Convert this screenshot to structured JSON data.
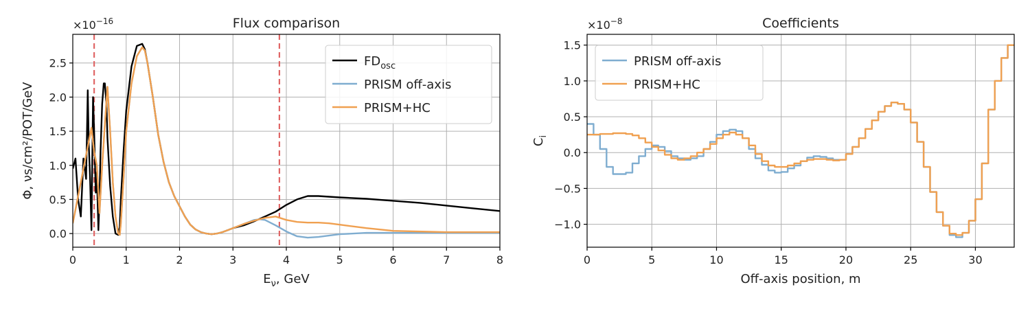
{
  "chart_data": [
    {
      "type": "line",
      "title": "Flux comparison",
      "xlabel": "E",
      "xlabel_sub": "ν",
      "xlabel_suffix": ", GeV",
      "ylabel": "Φ, νs/cm²/POT/GeV",
      "multiplier": "×10",
      "multiplier_exp": "−16",
      "xlim": [
        0,
        8
      ],
      "ylim": [
        -0.2,
        2.92
      ],
      "xticks": [
        "0",
        "1",
        "2",
        "3",
        "4",
        "5",
        "6",
        "7",
        "8"
      ],
      "yticks": [
        "0.0",
        "0.5",
        "1.0",
        "1.5",
        "2.0",
        "2.5"
      ],
      "grid": true,
      "legend_position": "top-right",
      "vlines": [
        {
          "x": 0.4,
          "color": "#e06666"
        },
        {
          "x": 3.87,
          "color": "#e06666"
        }
      ],
      "series": [
        {
          "name": "FD",
          "name_sub": "osc",
          "color": "#000000",
          "x": [
            0,
            0.05,
            0.1,
            0.15,
            0.2,
            0.25,
            0.28,
            0.3,
            0.32,
            0.35,
            0.38,
            0.4,
            0.43,
            0.45,
            0.48,
            0.5,
            0.52,
            0.55,
            0.58,
            0.6,
            0.63,
            0.65,
            0.7,
            0.75,
            0.8,
            0.85,
            0.88,
            0.9,
            0.95,
            1.0,
            1.1,
            1.2,
            1.3,
            1.35,
            1.4,
            1.5,
            1.6,
            1.7,
            1.8,
            1.9,
            2.0,
            2.1,
            2.2,
            2.3,
            2.4,
            2.5,
            2.6,
            2.7,
            2.8,
            2.9,
            3.0,
            3.2,
            3.4,
            3.6,
            3.8,
            4.0,
            4.2,
            4.4,
            4.6,
            4.8,
            5.0,
            5.5,
            6.0,
            6.5,
            7.0,
            7.5,
            8.0
          ],
          "y": [
            0.95,
            1.1,
            0.5,
            0.25,
            1.1,
            0.8,
            2.1,
            1.3,
            0.9,
            0.05,
            2.0,
            1.5,
            0.6,
            0.9,
            0.05,
            0.5,
            1.2,
            1.9,
            2.2,
            2.2,
            1.9,
            1.4,
            0.7,
            0.25,
            0.0,
            -0.02,
            0.1,
            0.5,
            1.2,
            1.8,
            2.45,
            2.75,
            2.78,
            2.7,
            2.5,
            2.0,
            1.45,
            1.05,
            0.75,
            0.55,
            0.4,
            0.25,
            0.13,
            0.06,
            0.02,
            0.0,
            -0.01,
            0.0,
            0.02,
            0.05,
            0.08,
            0.12,
            0.18,
            0.25,
            0.32,
            0.42,
            0.5,
            0.55,
            0.55,
            0.54,
            0.53,
            0.51,
            0.48,
            0.45,
            0.41,
            0.37,
            0.33
          ]
        },
        {
          "name": "PRISM off-axis",
          "color": "#7fadd0",
          "x": [
            0,
            0.1,
            0.2,
            0.3,
            0.35,
            0.4,
            0.45,
            0.5,
            0.55,
            0.6,
            0.65,
            0.7,
            0.75,
            0.8,
            0.85,
            0.88,
            0.9,
            0.95,
            1.0,
            1.1,
            1.2,
            1.3,
            1.35,
            1.4,
            1.5,
            1.6,
            1.7,
            1.8,
            1.9,
            2.0,
            2.1,
            2.2,
            2.3,
            2.4,
            2.5,
            2.6,
            2.7,
            2.8,
            2.9,
            3.0,
            3.2,
            3.4,
            3.5,
            3.6,
            3.8,
            4.0,
            4.2,
            4.4,
            4.6,
            4.8,
            5.0,
            5.5,
            6.0,
            7.0,
            8.0
          ],
          "y": [
            0.15,
            0.55,
            0.95,
            1.35,
            1.55,
            1.2,
            1.0,
            0.3,
            1.0,
            1.6,
            2.15,
            1.5,
            0.75,
            0.25,
            0.0,
            -0.02,
            0.15,
            0.8,
            1.5,
            2.2,
            2.6,
            2.73,
            2.68,
            2.5,
            2.0,
            1.45,
            1.05,
            0.75,
            0.55,
            0.4,
            0.25,
            0.13,
            0.06,
            0.02,
            0.0,
            -0.01,
            0.0,
            0.02,
            0.05,
            0.08,
            0.14,
            0.2,
            0.21,
            0.2,
            0.12,
            0.03,
            -0.04,
            -0.06,
            -0.05,
            -0.03,
            -0.01,
            0.01,
            0.01,
            0.01,
            0.01
          ]
        },
        {
          "name": "PRISM+HC",
          "color": "#f0a050",
          "x": [
            0,
            0.1,
            0.2,
            0.3,
            0.35,
            0.4,
            0.45,
            0.5,
            0.55,
            0.6,
            0.65,
            0.7,
            0.75,
            0.8,
            0.85,
            0.88,
            0.9,
            0.95,
            1.0,
            1.1,
            1.2,
            1.3,
            1.35,
            1.4,
            1.5,
            1.6,
            1.7,
            1.8,
            1.9,
            2.0,
            2.1,
            2.2,
            2.3,
            2.4,
            2.5,
            2.6,
            2.7,
            2.8,
            2.9,
            3.0,
            3.2,
            3.4,
            3.6,
            3.8,
            4.0,
            4.2,
            4.4,
            4.6,
            4.8,
            5.0,
            5.5,
            6.0,
            7.0,
            8.0
          ],
          "y": [
            0.15,
            0.55,
            0.95,
            1.35,
            1.55,
            1.2,
            1.0,
            0.3,
            1.0,
            1.6,
            2.15,
            1.5,
            0.75,
            0.25,
            0.0,
            -0.02,
            0.15,
            0.8,
            1.5,
            2.2,
            2.6,
            2.73,
            2.68,
            2.5,
            2.0,
            1.45,
            1.05,
            0.75,
            0.55,
            0.4,
            0.25,
            0.13,
            0.06,
            0.02,
            0.0,
            -0.01,
            0.0,
            0.02,
            0.05,
            0.08,
            0.14,
            0.19,
            0.23,
            0.25,
            0.2,
            0.17,
            0.16,
            0.16,
            0.15,
            0.13,
            0.08,
            0.04,
            0.02,
            0.02
          ]
        }
      ]
    },
    {
      "type": "line",
      "title": "Coefficients",
      "xlabel": "Off-axis position, m",
      "ylabel": "C",
      "ylabel_sub": "i",
      "multiplier": "×10",
      "multiplier_exp": "−8",
      "xlim": [
        0,
        33
      ],
      "ylim": [
        -1.32,
        1.65
      ],
      "xticks": [
        "0",
        "5",
        "10",
        "15",
        "20",
        "25",
        "30"
      ],
      "xtick_values": [
        0,
        5,
        10,
        15,
        20,
        25,
        30
      ],
      "yticks": [
        "−1.0",
        "−0.5",
        "0.0",
        "0.5",
        "1.0",
        "1.5"
      ],
      "ytick_values": [
        -1.0,
        -0.5,
        0.0,
        0.5,
        1.0,
        1.5
      ],
      "grid": true,
      "legend_position": "top-left",
      "step": true,
      "series": [
        {
          "name": "PRISM off-axis",
          "color": "#7fadd0",
          "x0": 0,
          "dx": 0.5,
          "values": [
            0.4,
            0.25,
            0.05,
            -0.2,
            -0.3,
            -0.3,
            -0.28,
            -0.15,
            -0.05,
            0.05,
            0.1,
            0.08,
            0.02,
            -0.05,
            -0.08,
            -0.1,
            -0.08,
            -0.05,
            0.05,
            0.15,
            0.25,
            0.3,
            0.32,
            0.3,
            0.2,
            0.05,
            -0.08,
            -0.17,
            -0.25,
            -0.28,
            -0.27,
            -0.22,
            -0.18,
            -0.12,
            -0.07,
            -0.05,
            -0.06,
            -0.08,
            -0.1,
            -0.1,
            -0.02,
            0.08,
            0.2,
            0.33,
            0.45,
            0.57,
            0.65,
            0.7,
            0.68,
            0.6,
            0.42,
            0.15,
            -0.2,
            -0.55,
            -0.83,
            -1.02,
            -1.15,
            -1.18,
            -1.12,
            -0.95,
            -0.65,
            -0.15,
            0.6,
            1.0,
            1.32,
            1.5
          ]
        },
        {
          "name": "PRISM+HC",
          "color": "#f0a050",
          "x0": 0,
          "dx": 0.5,
          "values": [
            0.25,
            0.25,
            0.26,
            0.26,
            0.27,
            0.27,
            0.26,
            0.24,
            0.2,
            0.14,
            0.08,
            0.03,
            -0.03,
            -0.08,
            -0.1,
            -0.08,
            -0.05,
            0.0,
            0.05,
            0.12,
            0.2,
            0.25,
            0.28,
            0.25,
            0.2,
            0.1,
            -0.02,
            -0.12,
            -0.18,
            -0.2,
            -0.2,
            -0.18,
            -0.15,
            -0.12,
            -0.1,
            -0.09,
            -0.09,
            -0.1,
            -0.11,
            -0.1,
            -0.02,
            0.08,
            0.2,
            0.33,
            0.45,
            0.57,
            0.65,
            0.7,
            0.68,
            0.6,
            0.42,
            0.15,
            -0.2,
            -0.55,
            -0.83,
            -1.02,
            -1.13,
            -1.15,
            -1.12,
            -0.95,
            -0.65,
            -0.15,
            0.6,
            1.0,
            1.32,
            1.5
          ]
        }
      ]
    }
  ]
}
